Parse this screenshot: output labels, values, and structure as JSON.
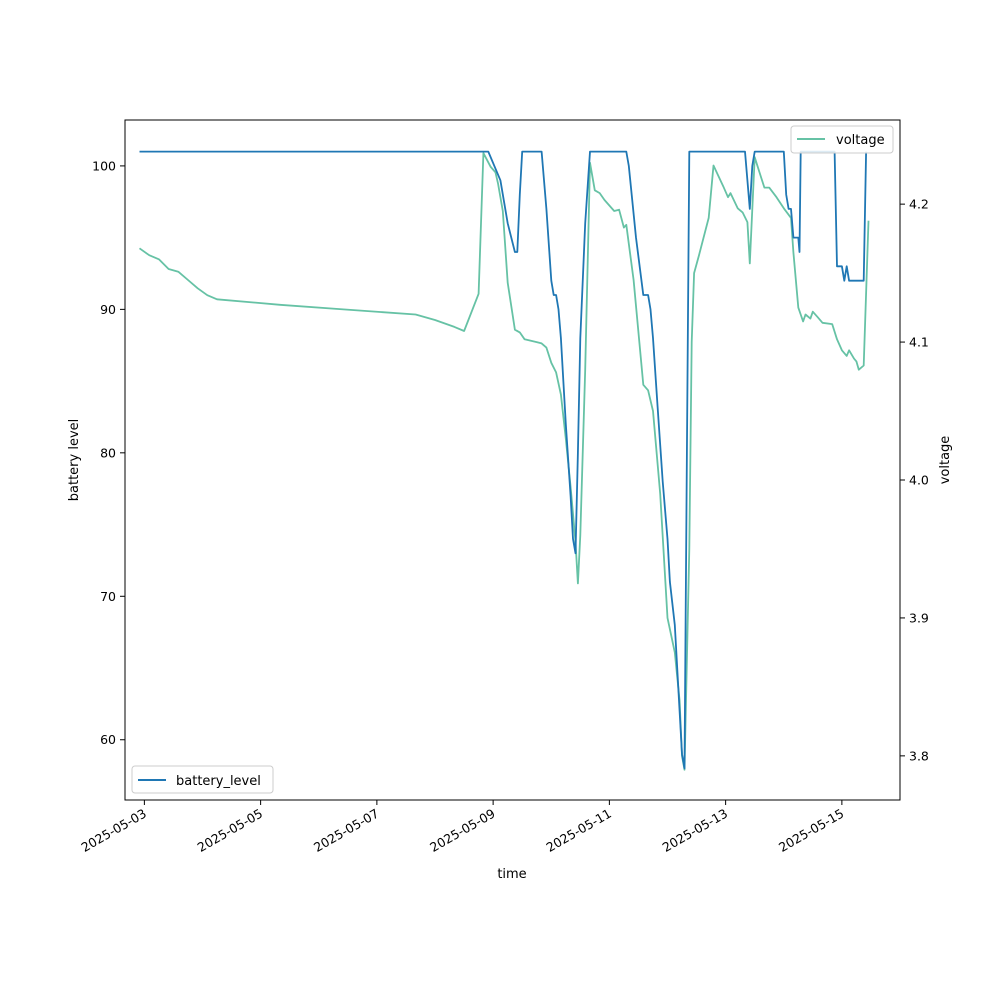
{
  "chart_data": {
    "type": "line",
    "title": "",
    "xlabel": "time",
    "ylabel_left": "battery level",
    "ylabel_right": "voltage",
    "x_ticks": [
      "2025-05-03",
      "2025-05-05",
      "2025-05-07",
      "2025-05-09",
      "2025-05-11",
      "2025-05-13",
      "2025-05-15"
    ],
    "y_left_ticks": [
      "60",
      "70",
      "80",
      "90",
      "100"
    ],
    "y_right_ticks": [
      "3.8",
      "3.9",
      "4.0",
      "4.1",
      "4.2"
    ],
    "x_range": [
      "2025-05-02 16:00",
      "2025-05-16 00:00"
    ],
    "y_left_range": [
      55.8,
      103.2
    ],
    "y_right_range": [
      3.768,
      4.261
    ],
    "grid": false,
    "colors": {
      "battery_level": "#1f77b4",
      "voltage": "#66c2a5"
    },
    "legend_left": {
      "placement": "lower-left",
      "label": "battery_level"
    },
    "legend_right": {
      "placement": "upper-right",
      "label": "voltage"
    },
    "series": [
      {
        "name": "battery_level",
        "axis": "left",
        "points": [
          [
            "2025-05-02 22:00",
            101
          ],
          [
            "2025-05-04 00:00",
            101
          ],
          [
            "2025-05-06 00:00",
            101
          ],
          [
            "2025-05-08 00:00",
            101
          ],
          [
            "2025-05-08 22:00",
            101
          ],
          [
            "2025-05-09 03:00",
            99
          ],
          [
            "2025-05-09 06:00",
            96
          ],
          [
            "2025-05-09 09:00",
            94
          ],
          [
            "2025-05-09 10:00",
            94
          ],
          [
            "2025-05-09 11:00",
            98
          ],
          [
            "2025-05-09 12:00",
            101
          ],
          [
            "2025-05-09 20:00",
            101
          ],
          [
            "2025-05-09 22:00",
            97
          ],
          [
            "2025-05-10 00:00",
            92
          ],
          [
            "2025-05-10 01:00",
            91
          ],
          [
            "2025-05-10 02:00",
            91
          ],
          [
            "2025-05-10 03:00",
            90
          ],
          [
            "2025-05-10 04:00",
            88
          ],
          [
            "2025-05-10 06:00",
            82
          ],
          [
            "2025-05-10 08:00",
            77
          ],
          [
            "2025-05-10 09:00",
            74
          ],
          [
            "2025-05-10 10:00",
            73
          ],
          [
            "2025-05-10 11:00",
            80
          ],
          [
            "2025-05-10 12:00",
            88
          ],
          [
            "2025-05-10 14:00",
            96
          ],
          [
            "2025-05-10 16:00",
            101
          ],
          [
            "2025-05-11 07:00",
            101
          ],
          [
            "2025-05-11 08:00",
            100
          ],
          [
            "2025-05-11 11:00",
            95
          ],
          [
            "2025-05-11 14:00",
            91
          ],
          [
            "2025-05-11 16:00",
            91
          ],
          [
            "2025-05-11 17:00",
            90
          ],
          [
            "2025-05-11 18:00",
            88
          ],
          [
            "2025-05-11 20:00",
            83
          ],
          [
            "2025-05-11 22:00",
            78
          ],
          [
            "2025-05-12 00:00",
            74
          ],
          [
            "2025-05-12 01:00",
            71
          ],
          [
            "2025-05-12 03:00",
            68
          ],
          [
            "2025-05-12 05:00",
            62
          ],
          [
            "2025-05-12 06:00",
            59
          ],
          [
            "2025-05-12 07:00",
            58
          ],
          [
            "2025-05-12 08:00",
            80
          ],
          [
            "2025-05-12 09:00",
            101
          ],
          [
            "2025-05-13 08:00",
            101
          ],
          [
            "2025-05-13 10:00",
            97
          ],
          [
            "2025-05-13 11:00",
            100
          ],
          [
            "2025-05-13 12:00",
            101
          ],
          [
            "2025-05-14 00:00",
            101
          ],
          [
            "2025-05-14 01:00",
            98
          ],
          [
            "2025-05-14 02:00",
            97
          ],
          [
            "2025-05-14 03:00",
            97
          ],
          [
            "2025-05-14 04:00",
            95
          ],
          [
            "2025-05-14 06:00",
            95
          ],
          [
            "2025-05-14 06:30",
            94
          ],
          [
            "2025-05-14 07:00",
            101
          ],
          [
            "2025-05-14 21:00",
            101
          ],
          [
            "2025-05-14 22:00",
            93
          ],
          [
            "2025-05-15 00:00",
            93
          ],
          [
            "2025-05-15 01:00",
            92
          ],
          [
            "2025-05-15 02:00",
            93
          ],
          [
            "2025-05-15 03:00",
            92
          ],
          [
            "2025-05-15 09:00",
            92
          ],
          [
            "2025-05-15 10:00",
            101
          ]
        ]
      },
      {
        "name": "voltage",
        "axis": "right",
        "points": [
          [
            "2025-05-02 22:00",
            4.168
          ],
          [
            "2025-05-03 02:00",
            4.163
          ],
          [
            "2025-05-03 06:00",
            4.16
          ],
          [
            "2025-05-03 10:00",
            4.153
          ],
          [
            "2025-05-03 14:00",
            4.151
          ],
          [
            "2025-05-03 18:00",
            4.145
          ],
          [
            "2025-05-03 22:00",
            4.139
          ],
          [
            "2025-05-04 02:00",
            4.134
          ],
          [
            "2025-05-04 06:00",
            4.131
          ],
          [
            "2025-05-05 08:00",
            4.127
          ],
          [
            "2025-05-06 08:00",
            4.124
          ],
          [
            "2025-05-07 16:00",
            4.12
          ],
          [
            "2025-05-08 00:00",
            4.116
          ],
          [
            "2025-05-08 08:00",
            4.111
          ],
          [
            "2025-05-08 12:00",
            4.108
          ],
          [
            "2025-05-08 18:00",
            4.135
          ],
          [
            "2025-05-08 20:00",
            4.237
          ],
          [
            "2025-05-08 23:00",
            4.227
          ],
          [
            "2025-05-09 01:00",
            4.223
          ],
          [
            "2025-05-09 02:00",
            4.215
          ],
          [
            "2025-05-09 04:00",
            4.195
          ],
          [
            "2025-05-09 06:00",
            4.143
          ],
          [
            "2025-05-09 09:00",
            4.109
          ],
          [
            "2025-05-09 11:00",
            4.107
          ],
          [
            "2025-05-09 13:00",
            4.102
          ],
          [
            "2025-05-09 18:00",
            4.1
          ],
          [
            "2025-05-09 20:00",
            4.099
          ],
          [
            "2025-05-09 22:00",
            4.096
          ],
          [
            "2025-05-10 00:00",
            4.085
          ],
          [
            "2025-05-10 02:00",
            4.078
          ],
          [
            "2025-05-10 04:00",
            4.062
          ],
          [
            "2025-05-10 06:00",
            4.03
          ],
          [
            "2025-05-10 08:00",
            3.995
          ],
          [
            "2025-05-10 10:00",
            3.955
          ],
          [
            "2025-05-10 11:00",
            3.925
          ],
          [
            "2025-05-10 12:00",
            3.96
          ],
          [
            "2025-05-10 14:00",
            4.08
          ],
          [
            "2025-05-10 16:00",
            4.23
          ],
          [
            "2025-05-10 18:00",
            4.21
          ],
          [
            "2025-05-10 20:00",
            4.208
          ],
          [
            "2025-05-10 22:00",
            4.203
          ],
          [
            "2025-05-11 02:00",
            4.195
          ],
          [
            "2025-05-11 04:00",
            4.196
          ],
          [
            "2025-05-11 06:00",
            4.183
          ],
          [
            "2025-05-11 07:00",
            4.185
          ],
          [
            "2025-05-11 10:00",
            4.145
          ],
          [
            "2025-05-11 14:00",
            4.069
          ],
          [
            "2025-05-11 16:00",
            4.065
          ],
          [
            "2025-05-11 18:00",
            4.05
          ],
          [
            "2025-05-11 21:00",
            3.99
          ],
          [
            "2025-05-12 00:00",
            3.9
          ],
          [
            "2025-05-12 03:00",
            3.875
          ],
          [
            "2025-05-12 05:00",
            3.84
          ],
          [
            "2025-05-12 06:00",
            3.8
          ],
          [
            "2025-05-12 07:00",
            3.79
          ],
          [
            "2025-05-12 09:00",
            3.95
          ],
          [
            "2025-05-12 10:00",
            4.1
          ],
          [
            "2025-05-12 11:00",
            4.15
          ],
          [
            "2025-05-12 13:00",
            4.163
          ],
          [
            "2025-05-12 17:00",
            4.19
          ],
          [
            "2025-05-12 19:00",
            4.228
          ],
          [
            "2025-05-12 23:00",
            4.213
          ],
          [
            "2025-05-13 01:00",
            4.205
          ],
          [
            "2025-05-13 02:00",
            4.208
          ],
          [
            "2025-05-13 05:00",
            4.197
          ],
          [
            "2025-05-13 07:00",
            4.194
          ],
          [
            "2025-05-13 09:00",
            4.187
          ],
          [
            "2025-05-13 10:00",
            4.157
          ],
          [
            "2025-05-13 12:00",
            4.234
          ],
          [
            "2025-05-13 14:00",
            4.223
          ],
          [
            "2025-05-13 16:00",
            4.212
          ],
          [
            "2025-05-13 18:00",
            4.212
          ],
          [
            "2025-05-13 21:00",
            4.205
          ],
          [
            "2025-05-14 00:00",
            4.197
          ],
          [
            "2025-05-14 03:00",
            4.19
          ],
          [
            "2025-05-14 04:00",
            4.165
          ],
          [
            "2025-05-14 06:00",
            4.125
          ],
          [
            "2025-05-14 07:00",
            4.12
          ],
          [
            "2025-05-14 08:00",
            4.115
          ],
          [
            "2025-05-14 09:00",
            4.12
          ],
          [
            "2025-05-14 11:00",
            4.117
          ],
          [
            "2025-05-14 12:00",
            4.122
          ],
          [
            "2025-05-14 14:00",
            4.118
          ],
          [
            "2025-05-14 16:00",
            4.114
          ],
          [
            "2025-05-14 20:00",
            4.113
          ],
          [
            "2025-05-14 22:00",
            4.102
          ],
          [
            "2025-05-15 00:00",
            4.094
          ],
          [
            "2025-05-15 02:00",
            4.09
          ],
          [
            "2025-05-15 03:00",
            4.094
          ],
          [
            "2025-05-15 05:00",
            4.088
          ],
          [
            "2025-05-15 06:00",
            4.086
          ],
          [
            "2025-05-15 07:00",
            4.08
          ],
          [
            "2025-05-15 09:00",
            4.083
          ],
          [
            "2025-05-15 11:00",
            4.188
          ]
        ]
      }
    ]
  }
}
